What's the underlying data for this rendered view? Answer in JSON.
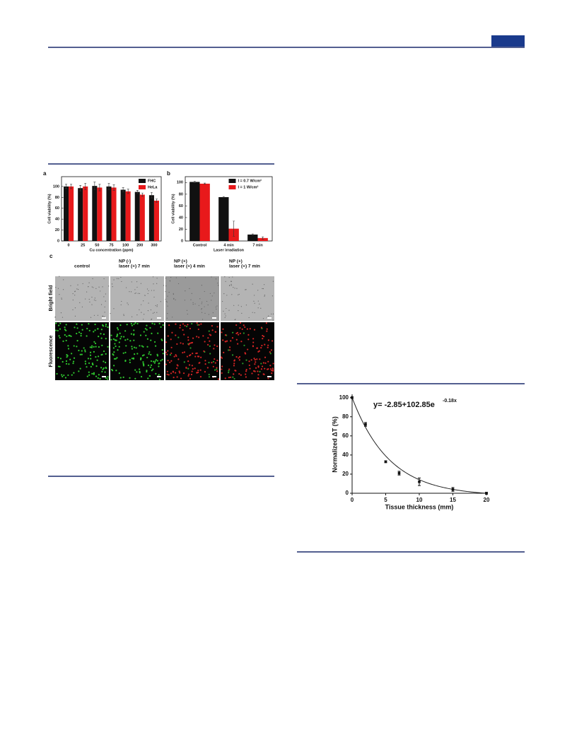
{
  "chart_data": [
    {
      "type": "bar",
      "label": "a",
      "xlabel": "Cu concentration (ppm)",
      "ylabel": "Cell viability (%)",
      "categories": [
        "0",
        "25",
        "50",
        "75",
        "100",
        "200",
        "300"
      ],
      "series": [
        {
          "name": "FHC",
          "color": "#111111",
          "values": [
            100,
            97,
            101,
            100,
            94,
            90,
            84
          ],
          "errors": [
            4,
            5,
            7,
            6,
            4,
            3,
            5
          ]
        },
        {
          "name": "HeLa",
          "color": "#e8191b",
          "values": [
            100,
            100,
            98,
            98,
            91,
            85,
            74
          ],
          "errors": [
            4,
            6,
            6,
            5,
            4,
            3,
            3
          ]
        }
      ],
      "ylim": [
        0,
        118
      ],
      "yticks": [
        0,
        20,
        40,
        60,
        80,
        100
      ],
      "legend": "upper right"
    },
    {
      "type": "bar",
      "label": "b",
      "xlabel": "Laser irradiation",
      "ylabel": "Cell viability (%)",
      "categories": [
        "Control",
        "4 min",
        "7 min"
      ],
      "series": [
        {
          "name": "I = 0.7 W/cm²",
          "color": "#111111",
          "values": [
            101,
            75,
            11
          ],
          "errors": [
            1,
            1,
            1
          ]
        },
        {
          "name": "I = 1 W/cm²",
          "color": "#e8191b",
          "values": [
            98,
            21,
            5
          ],
          "errors": [
            1,
            13,
            2
          ]
        }
      ],
      "ylim": [
        0,
        110
      ],
      "yticks": [
        0,
        20,
        40,
        60,
        80,
        100
      ],
      "legend": "upper right"
    },
    {
      "type": "scatter",
      "xlabel": "Tissue thickness (mm)",
      "ylabel": "Normalized ΔT (%)",
      "x": [
        0,
        2,
        5,
        7,
        10,
        15,
        20
      ],
      "values": [
        100,
        72,
        33,
        21,
        12,
        4,
        0
      ],
      "errors": [
        1,
        2,
        1,
        2,
        4,
        2,
        1
      ],
      "color": "#111111",
      "xlim": [
        0,
        20
      ],
      "ylim": [
        0,
        102
      ],
      "xticks": [
        0,
        5,
        10,
        15,
        20
      ],
      "yticks": [
        0,
        20,
        40,
        60,
        80,
        100
      ],
      "fit": {
        "a": -2.85,
        "b": 102.85,
        "k": -0.18
      },
      "annotation": "y= -2.85+102.85e",
      "annotation_exponent": "-0.18x"
    }
  ],
  "figure_c": {
    "label": "c",
    "columns": [
      [
        "control"
      ],
      [
        "NP (-)",
        "laser (+) 7 min"
      ],
      [
        "NP (+)",
        "laser (+) 4 min"
      ],
      [
        "NP (+)",
        "laser (+) 7 min"
      ]
    ],
    "rows": [
      "Bright field",
      "Fluorescence"
    ]
  }
}
